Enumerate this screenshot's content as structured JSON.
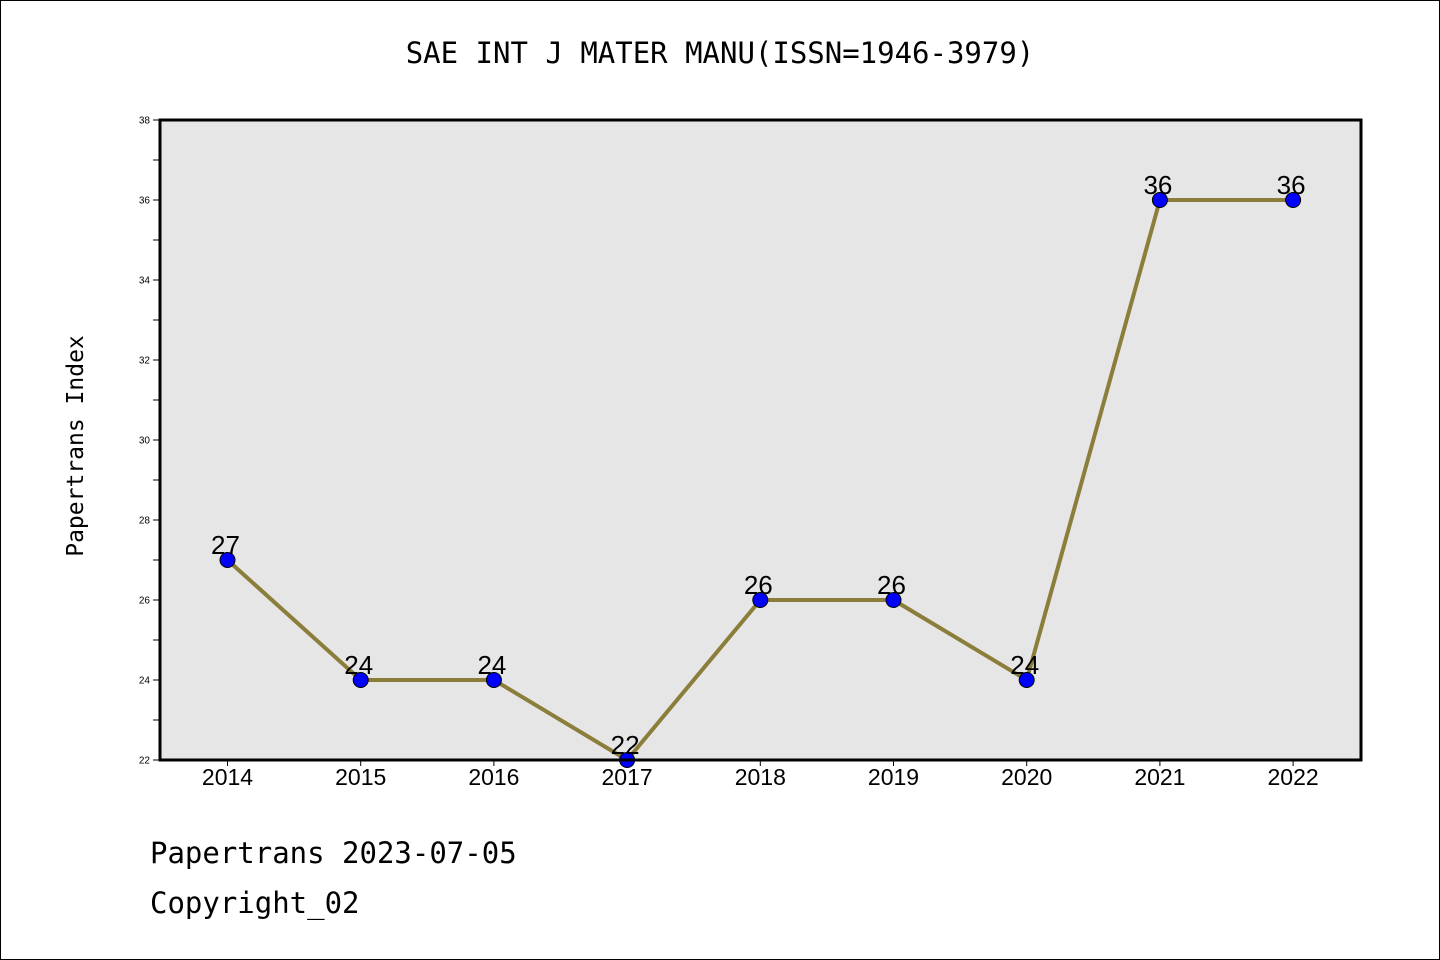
{
  "chart_data": {
    "type": "line",
    "title": "SAE INT J MATER MANU(ISSN=1946-3979)",
    "xlabel": "",
    "ylabel": "Papertrans Index",
    "categories": [
      "2014",
      "2015",
      "2016",
      "2017",
      "2018",
      "2019",
      "2020",
      "2021",
      "2022"
    ],
    "series": [
      {
        "values": [
          27,
          24,
          24,
          22,
          26,
          26,
          24,
          36,
          36
        ]
      }
    ],
    "data_labels": [
      "27",
      "24",
      "24",
      "22",
      "26",
      "26",
      "24",
      "36",
      "36"
    ],
    "ylim": [
      22,
      38
    ],
    "y_ticks": [
      "22",
      "24",
      "26",
      "28",
      "30",
      "32",
      "34",
      "36",
      "38"
    ],
    "grid": false,
    "legend": "none",
    "colors": {
      "line": "#8b7d3a",
      "marker": "#0000ff",
      "plot_background": "#e6e6e6"
    }
  },
  "footer": {
    "line1": "Papertrans 2023-07-05",
    "line2": "Copyright_02"
  }
}
